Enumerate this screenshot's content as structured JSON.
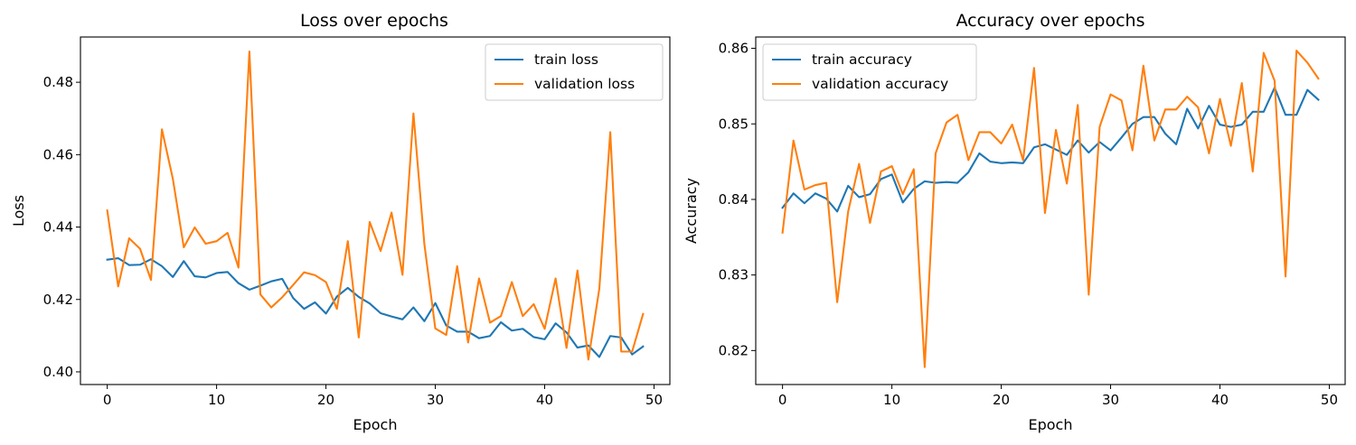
{
  "chart_data": [
    {
      "type": "line",
      "title": "Loss over epochs",
      "xlabel": "Epoch",
      "ylabel": "Loss",
      "xlim": [
        -2.45,
        51.45
      ],
      "ylim": [
        0.3965,
        0.4925
      ],
      "xticks": [
        0,
        10,
        20,
        30,
        40,
        50
      ],
      "yticks": [
        0.4,
        0.42,
        0.44,
        0.46,
        0.48
      ],
      "ytick_format": 2,
      "grid": false,
      "legend_position": "top-right",
      "x": [
        0,
        1,
        2,
        3,
        4,
        5,
        6,
        7,
        8,
        9,
        10,
        11,
        12,
        13,
        14,
        15,
        16,
        17,
        18,
        19,
        20,
        21,
        22,
        23,
        24,
        25,
        26,
        27,
        28,
        29,
        30,
        31,
        32,
        33,
        34,
        35,
        36,
        37,
        38,
        39,
        40,
        41,
        42,
        43,
        44,
        45,
        46,
        47,
        48,
        49
      ],
      "series": [
        {
          "name": "train loss",
          "color": "#1f77b4",
          "values": [
            0.431,
            0.4314,
            0.4295,
            0.4296,
            0.4311,
            0.4292,
            0.4262,
            0.4306,
            0.4264,
            0.4261,
            0.4273,
            0.4276,
            0.4245,
            0.4227,
            0.4238,
            0.425,
            0.4257,
            0.4204,
            0.4174,
            0.4192,
            0.4161,
            0.4208,
            0.4232,
            0.4207,
            0.4189,
            0.4162,
            0.4153,
            0.4145,
            0.4178,
            0.414,
            0.419,
            0.4128,
            0.4111,
            0.4111,
            0.4093,
            0.4099,
            0.4137,
            0.4114,
            0.4119,
            0.4096,
            0.409,
            0.4134,
            0.4109,
            0.4067,
            0.4073,
            0.4041,
            0.4099,
            0.4095,
            0.4048,
            0.407
          ]
        },
        {
          "name": "validation loss",
          "color": "#ff7f0e",
          "values": [
            0.4446,
            0.4236,
            0.4369,
            0.434,
            0.4254,
            0.467,
            0.4533,
            0.4344,
            0.4399,
            0.4354,
            0.4361,
            0.4384,
            0.4288,
            0.4885,
            0.4214,
            0.4178,
            0.4206,
            0.424,
            0.4275,
            0.4267,
            0.4248,
            0.4174,
            0.4361,
            0.4095,
            0.4414,
            0.4334,
            0.444,
            0.4268,
            0.4714,
            0.4353,
            0.412,
            0.4102,
            0.4292,
            0.4081,
            0.4258,
            0.4136,
            0.4154,
            0.4248,
            0.4154,
            0.4187,
            0.4119,
            0.4258,
            0.4066,
            0.428,
            0.4034,
            0.423,
            0.4662,
            0.4056,
            0.4056,
            0.416
          ]
        }
      ]
    },
    {
      "type": "line",
      "title": "Accuracy over epochs",
      "xlabel": "Epoch",
      "ylabel": "Accuracy",
      "xlim": [
        -2.45,
        51.45
      ],
      "ylim": [
        0.8155,
        0.8615
      ],
      "xticks": [
        0,
        10,
        20,
        30,
        40,
        50
      ],
      "yticks": [
        0.82,
        0.83,
        0.84,
        0.85,
        0.86
      ],
      "ytick_format": 2,
      "grid": false,
      "legend_position": "top-left",
      "x": [
        0,
        1,
        2,
        3,
        4,
        5,
        6,
        7,
        8,
        9,
        10,
        11,
        12,
        13,
        14,
        15,
        16,
        17,
        18,
        19,
        20,
        21,
        22,
        23,
        24,
        25,
        26,
        27,
        28,
        29,
        30,
        31,
        32,
        33,
        34,
        35,
        36,
        37,
        38,
        39,
        40,
        41,
        42,
        43,
        44,
        45,
        46,
        47,
        48,
        49
      ],
      "series": [
        {
          "name": "train accuracy",
          "color": "#1f77b4",
          "values": [
            0.8389,
            0.8408,
            0.8395,
            0.8408,
            0.8401,
            0.8384,
            0.8418,
            0.8403,
            0.8407,
            0.8427,
            0.8433,
            0.8396,
            0.8414,
            0.8424,
            0.8422,
            0.8423,
            0.8422,
            0.8436,
            0.8461,
            0.845,
            0.8448,
            0.8449,
            0.8448,
            0.8469,
            0.8473,
            0.8466,
            0.8459,
            0.8478,
            0.8462,
            0.8476,
            0.8465,
            0.8482,
            0.85,
            0.8509,
            0.8509,
            0.8487,
            0.8473,
            0.852,
            0.8494,
            0.8524,
            0.8499,
            0.8496,
            0.8499,
            0.8516,
            0.8516,
            0.8548,
            0.8512,
            0.8512,
            0.8545,
            0.8532
          ]
        },
        {
          "name": "validation accuracy",
          "color": "#ff7f0e",
          "values": [
            0.8356,
            0.8478,
            0.8413,
            0.8419,
            0.8422,
            0.8264,
            0.8384,
            0.8447,
            0.8369,
            0.8437,
            0.8444,
            0.8407,
            0.844,
            0.8178,
            0.8461,
            0.8502,
            0.8512,
            0.8452,
            0.8489,
            0.8489,
            0.8474,
            0.8499,
            0.8452,
            0.8574,
            0.8382,
            0.8492,
            0.8421,
            0.8525,
            0.8274,
            0.8496,
            0.8539,
            0.8531,
            0.8465,
            0.8577,
            0.8478,
            0.8519,
            0.8519,
            0.8536,
            0.8522,
            0.8461,
            0.8533,
            0.8471,
            0.8554,
            0.8437,
            0.8594,
            0.8557,
            0.8298,
            0.8597,
            0.8581,
            0.856
          ]
        }
      ]
    }
  ]
}
